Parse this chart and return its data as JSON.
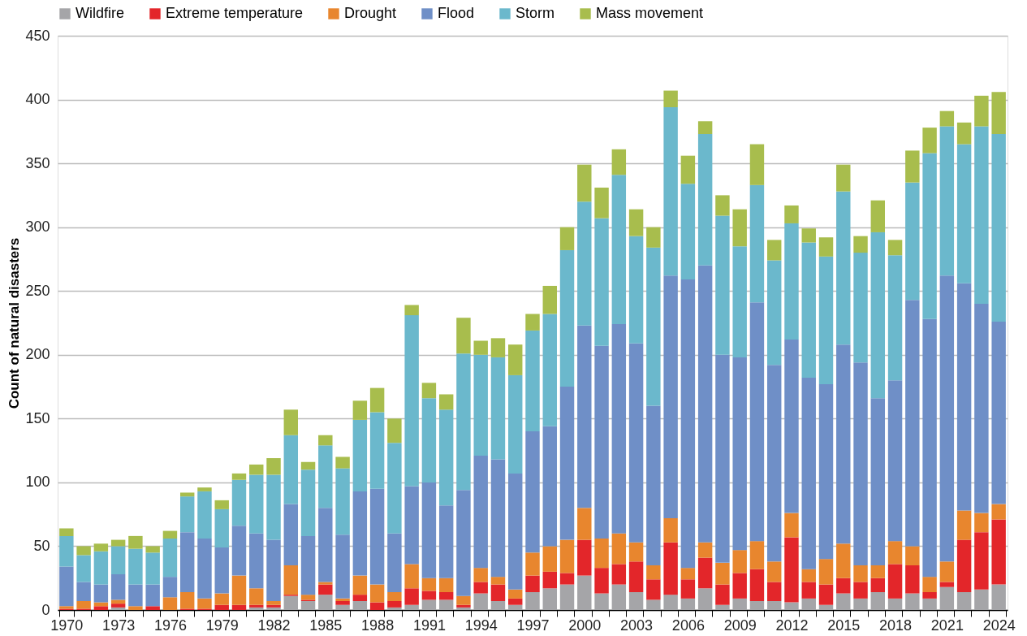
{
  "chart_data": {
    "type": "bar",
    "stacked": true,
    "ylabel": "Count of natural disasters",
    "categories": [
      "1970",
      null,
      null,
      "1973",
      null,
      null,
      "1976",
      null,
      null,
      "1979",
      null,
      null,
      "1982",
      null,
      null,
      "1985",
      null,
      null,
      "1988",
      null,
      null,
      "1991",
      null,
      null,
      "1994",
      null,
      null,
      "1997",
      null,
      null,
      "2000",
      null,
      null,
      "2003",
      null,
      null,
      "2006",
      null,
      null,
      "2009",
      null,
      null,
      "2012",
      null,
      null,
      "2015",
      null,
      null,
      "2018",
      null,
      null,
      "2021",
      null,
      null,
      "2024"
    ],
    "series": [
      {
        "name": "Wildfire",
        "color": "#a5a5a8",
        "values": [
          0,
          0,
          0,
          2,
          0,
          0,
          null,
          null,
          null,
          0,
          0,
          2,
          2,
          11,
          7,
          12,
          4,
          7,
          0,
          2,
          4,
          8,
          8,
          2,
          13,
          7,
          4,
          14,
          17,
          20,
          27,
          13,
          20,
          14,
          8,
          12,
          9,
          17,
          4,
          9,
          7,
          7,
          6,
          9,
          4,
          13,
          9,
          14,
          9,
          13,
          9,
          18,
          14,
          16,
          20
        ]
      },
      {
        "name": "Extreme temperature",
        "color": "#e3262a",
        "values": [
          1,
          1,
          3,
          3,
          0,
          3,
          0,
          1,
          1,
          4,
          4,
          2,
          2,
          1,
          1,
          8,
          3,
          5,
          6,
          5,
          13,
          7,
          6,
          2,
          9,
          13,
          5,
          13,
          13,
          9,
          28,
          20,
          16,
          24,
          16,
          41,
          15,
          24,
          16,
          20,
          25,
          15,
          51,
          13,
          16,
          12,
          13,
          11,
          27,
          22,
          5,
          4,
          41,
          45,
          51
        ]
      },
      {
        "name": "Drought",
        "color": "#e8862e",
        "values": [
          2,
          6,
          3,
          3,
          3,
          0,
          10,
          13,
          8,
          9,
          23,
          13,
          3,
          23,
          4,
          2,
          2,
          15,
          14,
          7,
          19,
          10,
          11,
          7,
          11,
          6,
          7,
          18,
          20,
          26,
          25,
          23,
          24,
          15,
          11,
          19,
          9,
          12,
          17,
          18,
          22,
          16,
          19,
          10,
          20,
          27,
          13,
          10,
          18,
          15,
          12,
          16,
          23,
          15,
          12
        ]
      },
      {
        "name": "Flood",
        "color": "#6f8fc7",
        "values": [
          31,
          15,
          14,
          20,
          17,
          17,
          16,
          47,
          47,
          36,
          39,
          43,
          48,
          48,
          46,
          58,
          50,
          66,
          75,
          46,
          61,
          75,
          57,
          83,
          88,
          92,
          91,
          95,
          94,
          120,
          143,
          151,
          164,
          156,
          125,
          190,
          226,
          217,
          163,
          151,
          187,
          154,
          136,
          150,
          137,
          156,
          159,
          131,
          126,
          193,
          202,
          224,
          178,
          164,
          143
        ]
      },
      {
        "name": "Storm",
        "color": "#6bb8cc",
        "values": [
          24,
          21,
          26,
          22,
          28,
          25,
          30,
          28,
          37,
          30,
          36,
          46,
          51,
          54,
          52,
          49,
          52,
          56,
          60,
          71,
          134,
          66,
          75,
          107,
          79,
          80,
          77,
          79,
          88,
          107,
          97,
          100,
          117,
          84,
          124,
          132,
          75,
          103,
          109,
          87,
          92,
          82,
          91,
          106,
          100,
          120,
          86,
          130,
          98,
          92,
          130,
          117,
          109,
          139,
          147
        ]
      },
      {
        "name": "Mass movement",
        "color": "#a8bd4d",
        "values": [
          6,
          7,
          6,
          5,
          10,
          5,
          6,
          3,
          3,
          7,
          5,
          8,
          13,
          20,
          6,
          8,
          9,
          15,
          19,
          19,
          8,
          12,
          12,
          28,
          11,
          15,
          24,
          13,
          22,
          18,
          29,
          24,
          20,
          21,
          16,
          13,
          22,
          10,
          16,
          29,
          32,
          16,
          14,
          11,
          15,
          21,
          13,
          25,
          12,
          25,
          20,
          12,
          17,
          24,
          33
        ]
      }
    ],
    "ylim": [
      0,
      450
    ],
    "yticks": [
      0,
      50,
      100,
      150,
      200,
      250,
      300,
      350,
      400,
      450
    ],
    "grid": "y",
    "legend": "top"
  }
}
